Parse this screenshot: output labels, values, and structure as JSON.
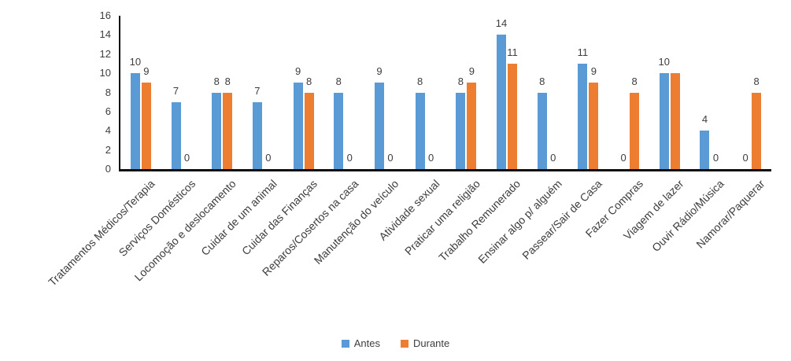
{
  "chart_data": {
    "type": "bar",
    "title": "",
    "xlabel": "",
    "ylabel": "",
    "categories": [
      "Tratamentos Médicos/Terapia",
      "Serviços Domésticos",
      "Locomoção e deslocamento",
      "Cuidar de um animal",
      "Cuidar das Finanças",
      "Reparos/Cosertos na casa",
      "Manutenção do veículo",
      "Atividade sexual",
      "Praticar uma religião",
      "Trabalho Remunerado",
      "Ensinar algo p/ alguém",
      "Passear/Sair de Casa",
      "Fazer Compras",
      "Viagem de lazer",
      "Ouvir Rádio/Música",
      "Namorar/Paquerar"
    ],
    "series": [
      {
        "name": "Antes",
        "color": "#5B9BD5",
        "values": [
          10,
          7,
          8,
          7,
          9,
          8,
          9,
          8,
          8,
          14,
          8,
          11,
          0,
          10,
          4,
          0
        ],
        "labels": [
          "10",
          "7",
          "8",
          "7",
          "9",
          "8",
          "9",
          "8",
          "8",
          "14",
          "8",
          "11",
          "0",
          "10",
          "4",
          "0"
        ]
      },
      {
        "name": "Durante",
        "color": "#ED7D31",
        "values": [
          9,
          0,
          8,
          0,
          8,
          0,
          0,
          0,
          9,
          11,
          0,
          9,
          8,
          10,
          0,
          8
        ],
        "labels": [
          "9",
          "0",
          "8",
          "0",
          "8",
          "0",
          "0",
          "0",
          "9",
          "11",
          "0",
          "9",
          "8",
          "",
          "0",
          "8"
        ]
      }
    ],
    "ylim": [
      0,
      16
    ],
    "yticks": [
      0,
      2,
      4,
      6,
      8,
      10,
      12,
      14,
      16
    ],
    "grid": false,
    "data_labels": true,
    "xlabel_rotation": 45,
    "legend_position": "bottom",
    "legend": [
      "Antes",
      "Durante"
    ]
  }
}
